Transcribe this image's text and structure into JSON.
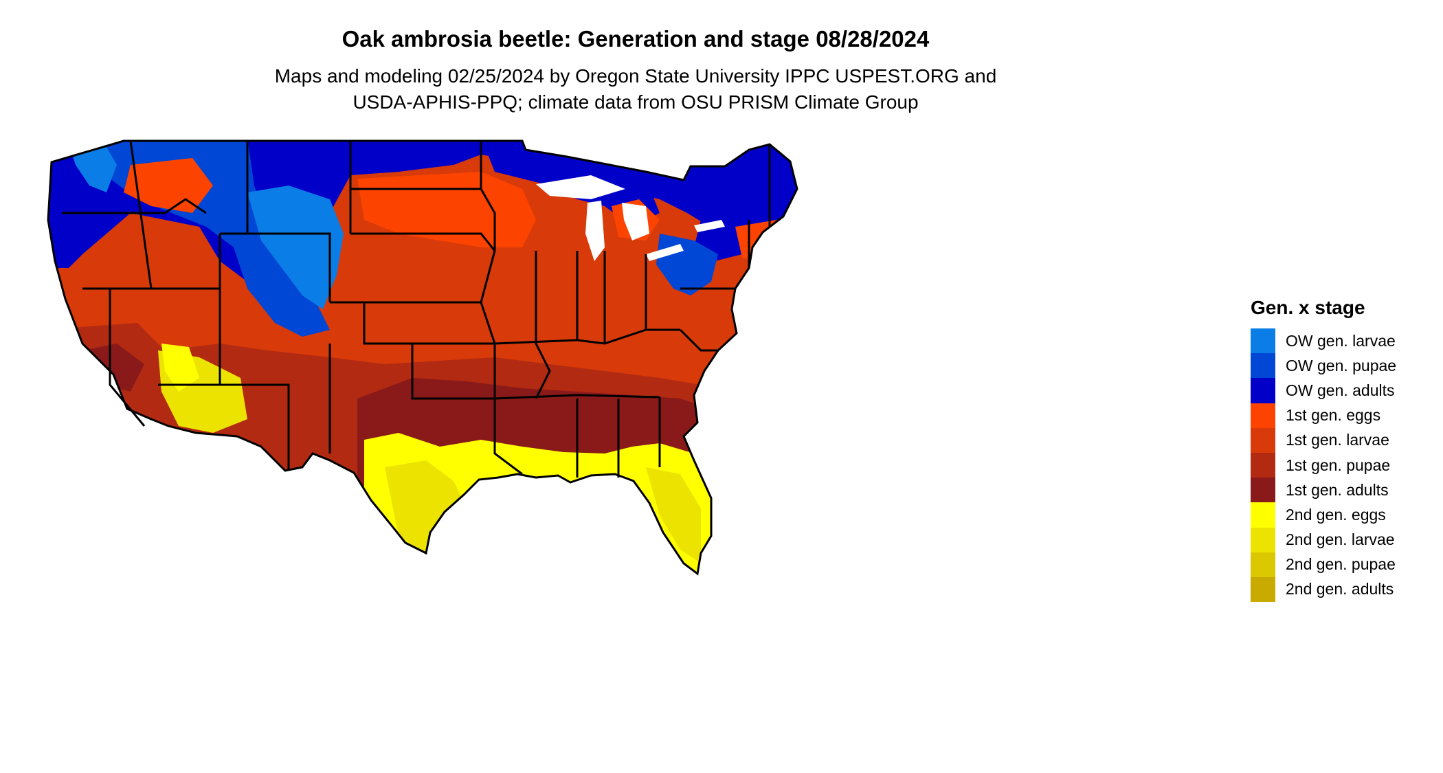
{
  "map": {
    "title": "Oak ambrosia beetle: Generation and stage 08/28/2024",
    "subtitle_line1": "Maps and modeling 02/25/2024 by Oregon State University IPPC USPEST.ORG and",
    "subtitle_line2": "USDA-APHIS-PPQ; climate data from OSU PRISM Climate Group"
  },
  "legend": {
    "title": "Gen. x stage",
    "items": [
      {
        "label": "OW gen. larvae",
        "color": "#0a7de6"
      },
      {
        "label": "OW gen. pupae",
        "color": "#0047d6"
      },
      {
        "label": "OW gen. adults",
        "color": "#0000c8"
      },
      {
        "label": "1st gen. eggs",
        "color": "#fc4400"
      },
      {
        "label": "1st gen. larvae",
        "color": "#d83a0a"
      },
      {
        "label": "1st gen. pupae",
        "color": "#b22a12"
      },
      {
        "label": "1st gen. adults",
        "color": "#8a1a1a"
      },
      {
        "label": "2nd gen. eggs",
        "color": "#ffff00"
      },
      {
        "label": "2nd gen. larvae",
        "color": "#ece400"
      },
      {
        "label": "2nd gen. pupae",
        "color": "#dcc800"
      },
      {
        "label": "2nd gen. adults",
        "color": "#c9aa00"
      }
    ]
  }
}
